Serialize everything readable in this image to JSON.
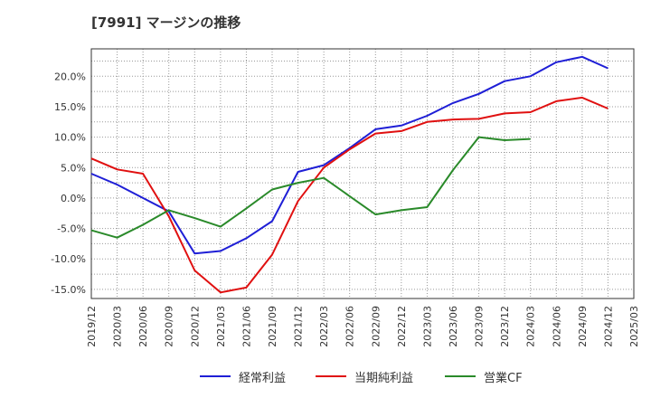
{
  "chart_data": {
    "type": "line",
    "title": "[7991]  マージンの推移",
    "x": [
      "2019/12",
      "2020/03",
      "2020/06",
      "2020/09",
      "2020/12",
      "2021/03",
      "2021/06",
      "2021/09",
      "2021/12",
      "2022/03",
      "2022/06",
      "2022/09",
      "2022/12",
      "2023/03",
      "2023/06",
      "2023/09",
      "2023/12",
      "2024/03",
      "2024/06",
      "2024/09",
      "2024/12",
      "2025/03"
    ],
    "y_ticks": [
      20,
      15,
      10,
      5,
      0,
      -5,
      -10,
      -15
    ],
    "y_tick_labels": [
      "20.0%",
      "15.0%",
      "10.0%",
      "5.0%",
      "0.0%",
      "-5.0%",
      "-10.0%",
      "-15.0%"
    ],
    "ylim": [
      -16.5,
      24.5
    ],
    "grid": true,
    "legend_position": "bottom",
    "series": [
      {
        "name": "経常利益",
        "color": "#1f1fd6",
        "values": [
          4.0,
          2.2,
          0.0,
          -2.2,
          -9.1,
          -8.7,
          -6.6,
          -3.8,
          4.3,
          5.4,
          8.2,
          11.3,
          11.9,
          13.5,
          15.6,
          17.1,
          19.2,
          20.0,
          22.3,
          23.2,
          21.3,
          null
        ]
      },
      {
        "name": "当期純利益",
        "color": "#e01010",
        "values": [
          6.5,
          4.7,
          4.0,
          -3.0,
          -11.9,
          -15.5,
          -14.7,
          -9.3,
          -0.5,
          5.0,
          8.0,
          10.6,
          11.0,
          12.5,
          12.9,
          13.0,
          13.9,
          14.1,
          15.9,
          16.5,
          14.7,
          null
        ]
      },
      {
        "name": "営業CF",
        "color": "#2a8a2a",
        "values": [
          -5.3,
          -6.5,
          -4.4,
          -2.0,
          -3.3,
          -4.7,
          -1.7,
          1.4,
          2.5,
          3.3,
          0.3,
          -2.7,
          -2.0,
          -1.5,
          4.6,
          10.0,
          9.5,
          9.7,
          null,
          null,
          null,
          null
        ]
      }
    ]
  }
}
